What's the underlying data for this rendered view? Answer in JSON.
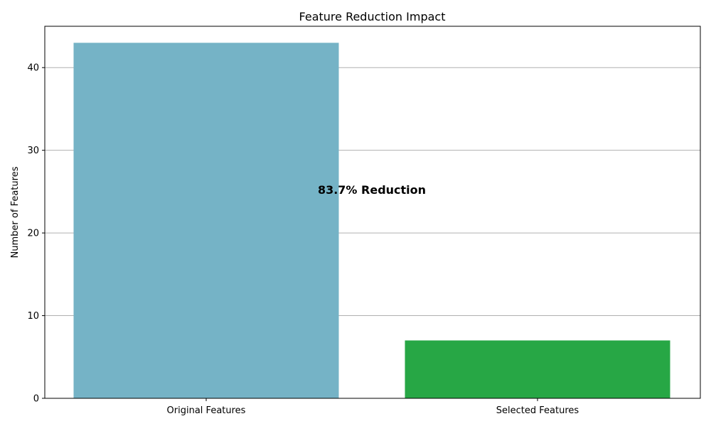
{
  "chart_data": {
    "type": "bar",
    "title": "Feature Reduction Impact",
    "xlabel": "",
    "ylabel": "Number of Features",
    "categories": [
      "Original Features",
      "Selected Features"
    ],
    "values": [
      43,
      7
    ],
    "colors": [
      "#75b3c6",
      "#27a745"
    ],
    "ylim": [
      0,
      45
    ],
    "yticks": [
      0,
      10,
      20,
      30,
      40
    ],
    "grid": "y",
    "annotation": {
      "text": "83.7% Reduction",
      "x_between_categories": true,
      "y": 25.2
    }
  }
}
